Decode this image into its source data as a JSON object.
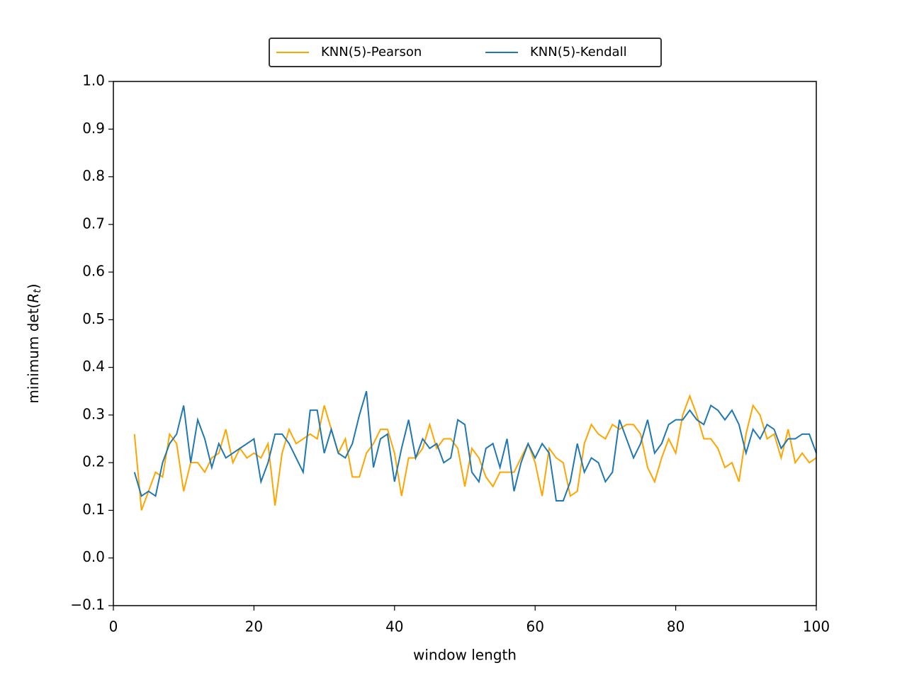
{
  "chart_data": {
    "type": "line",
    "xlabel": "window length",
    "ylabel": [
      "minimum det(",
      "R",
      "t",
      ")"
    ],
    "x": [
      3,
      4,
      5,
      6,
      7,
      8,
      9,
      10,
      11,
      12,
      13,
      14,
      15,
      16,
      17,
      18,
      19,
      20,
      21,
      22,
      23,
      24,
      25,
      26,
      27,
      28,
      29,
      30,
      31,
      32,
      33,
      34,
      35,
      36,
      37,
      38,
      39,
      40,
      41,
      42,
      43,
      44,
      45,
      46,
      47,
      48,
      49,
      50,
      51,
      52,
      53,
      54,
      55,
      56,
      57,
      58,
      59,
      60,
      61,
      62,
      63,
      64,
      65,
      66,
      67,
      68,
      69,
      70,
      71,
      72,
      73,
      74,
      75,
      76,
      77,
      78,
      79,
      80,
      81,
      82,
      83,
      84,
      85,
      86,
      87,
      88,
      89,
      90,
      91,
      92,
      93,
      94,
      95,
      96,
      97,
      98,
      99,
      100
    ],
    "series": [
      {
        "name": "KNN(5)-Pearson",
        "color": "#ffa500",
        "values": [
          0.26,
          0.1,
          0.14,
          0.18,
          0.17,
          0.26,
          0.24,
          0.14,
          0.2,
          0.2,
          0.18,
          0.21,
          0.22,
          0.27,
          0.2,
          0.23,
          0.21,
          0.22,
          0.21,
          0.24,
          0.11,
          0.22,
          0.27,
          0.24,
          0.25,
          0.26,
          0.25,
          0.32,
          0.27,
          0.22,
          0.25,
          0.17,
          0.17,
          0.22,
          0.24,
          0.27,
          0.27,
          0.22,
          0.13,
          0.21,
          0.21,
          0.23,
          0.28,
          0.23,
          0.25,
          0.25,
          0.23,
          0.15,
          0.23,
          0.21,
          0.17,
          0.15,
          0.18,
          0.18,
          0.18,
          0.21,
          0.24,
          0.2,
          0.13,
          0.23,
          0.21,
          0.2,
          0.13,
          0.14,
          0.24,
          0.28,
          0.26,
          0.25,
          0.28,
          0.27,
          0.28,
          0.28,
          0.26,
          0.19,
          0.16,
          0.21,
          0.25,
          0.22,
          0.3,
          0.34,
          0.3,
          0.25,
          0.25,
          0.23,
          0.19,
          0.2,
          0.16,
          0.26,
          0.32,
          0.3,
          0.25,
          0.26,
          0.21,
          0.27,
          0.2,
          0.22,
          0.2,
          0.21
        ]
      },
      {
        "name": "KNN(5)-Kendall",
        "color": "#1f77b4",
        "values": [
          0.18,
          0.13,
          0.14,
          0.13,
          0.2,
          0.24,
          0.26,
          0.32,
          0.2,
          0.29,
          0.25,
          0.19,
          0.24,
          0.21,
          0.22,
          0.23,
          0.24,
          0.25,
          0.16,
          0.2,
          0.26,
          0.26,
          0.24,
          0.21,
          0.18,
          0.31,
          0.31,
          0.22,
          0.27,
          0.22,
          0.21,
          0.24,
          0.3,
          0.35,
          0.19,
          0.25,
          0.26,
          0.16,
          0.23,
          0.29,
          0.21,
          0.25,
          0.23,
          0.24,
          0.2,
          0.21,
          0.29,
          0.28,
          0.18,
          0.16,
          0.23,
          0.24,
          0.19,
          0.25,
          0.14,
          0.2,
          0.24,
          0.21,
          0.24,
          0.22,
          0.12,
          0.12,
          0.16,
          0.24,
          0.18,
          0.21,
          0.2,
          0.16,
          0.18,
          0.29,
          0.25,
          0.21,
          0.24,
          0.29,
          0.22,
          0.24,
          0.28,
          0.29,
          0.29,
          0.31,
          0.29,
          0.28,
          0.32,
          0.31,
          0.29,
          0.31,
          0.28,
          0.22,
          0.27,
          0.25,
          0.28,
          0.27,
          0.23,
          0.25,
          0.25,
          0.26,
          0.26,
          0.22
        ]
      }
    ],
    "xlim": [
      0,
      100
    ],
    "xticks": [
      0,
      20,
      40,
      60,
      80,
      100
    ],
    "ylim": [
      -0.1,
      1.0
    ],
    "yticks": [
      {
        "value": -0.1,
        "label": "−0.1"
      },
      {
        "value": 0,
        "label": "0.0"
      },
      0.1,
      0.2,
      0.3,
      0.4,
      0.5,
      0.6,
      0.7,
      0.8,
      0.9,
      {
        "value": 1.0,
        "label": "1.0"
      }
    ],
    "legend": "upper center",
    "grid": false
  }
}
